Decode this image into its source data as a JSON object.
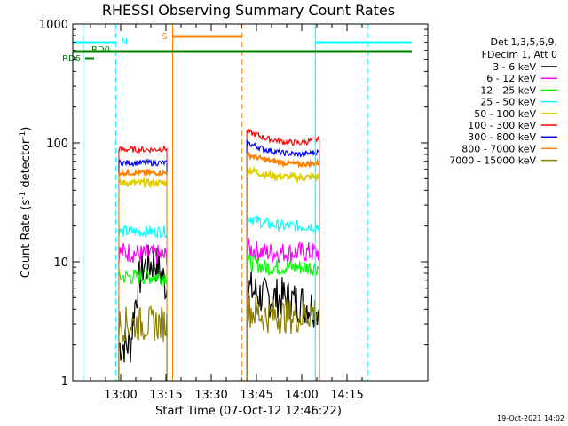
{
  "chart_data": {
    "type": "line",
    "title": "RHESSI Observing Summary Count Rates",
    "xlabel": "Start Time (07-Oct-12 12:46:22)",
    "ylabel_main": "Count Rate (s",
    "ylabel_sup1": "-1",
    "ylabel_mid": " detector",
    "ylabel_sup2": "-1",
    "ylabel_end": ")",
    "yscale": "log",
    "ylim": [
      1,
      1000
    ],
    "xlim_minutes": [
      -13.6,
      31.8
    ],
    "x_ticks": [
      {
        "value": 0,
        "label": "13:00"
      },
      {
        "value": 15,
        "label": "13:15"
      },
      {
        "value": 30,
        "label": "13:30"
      },
      {
        "value": 45,
        "label": "13:45"
      },
      {
        "value": 60,
        "label": "14:00"
      },
      {
        "value": 75,
        "label": "14:15"
      }
    ],
    "y_ticks": [
      {
        "value": 1,
        "label": "1"
      },
      {
        "value": 10,
        "label": "10"
      },
      {
        "value": 100,
        "label": "100"
      },
      {
        "value": 1000,
        "label": "1000"
      }
    ],
    "legend_header": [
      "Det 1,3,5,6,9,",
      "FDecim 1, Att 0"
    ],
    "legend_position": "right",
    "timestamp": "19-Oct-2021 14:02",
    "series": [
      {
        "name": "3 - 6 keV",
        "color": "#000000",
        "seg1": [
          2,
          2,
          9,
          10,
          6
        ],
        "seg2": [
          6,
          5,
          5,
          4.5,
          4
        ]
      },
      {
        "name": "6 - 12 keV",
        "color": "#ff00ff",
        "seg1": [
          12,
          12,
          11.5,
          11.5,
          11
        ],
        "seg2": [
          13,
          12,
          12,
          12,
          12
        ]
      },
      {
        "name": "12 - 25 keV",
        "color": "#00ff00",
        "seg1": [
          7.5,
          7.5,
          7.5,
          7.5,
          7.5
        ],
        "seg2": [
          10,
          9,
          9,
          9,
          9
        ]
      },
      {
        "name": "25 - 50 keV",
        "color": "#00ffff",
        "seg1": [
          18,
          18,
          18,
          18,
          18
        ],
        "seg2": [
          24,
          21,
          20,
          20,
          20
        ]
      },
      {
        "name": "50 - 100 keV",
        "color": "#e0d000",
        "seg1": [
          46,
          46,
          46,
          46,
          46
        ],
        "seg2": [
          60,
          54,
          52,
          51,
          52
        ]
      },
      {
        "name": "100 - 300 keV",
        "color": "#ff0000",
        "seg1": [
          88,
          88,
          88,
          88,
          90
        ],
        "seg2": [
          125,
          110,
          102,
          100,
          108
        ]
      },
      {
        "name": "300 - 800 keV",
        "color": "#0000ff",
        "seg1": [
          68,
          68,
          68,
          68,
          68
        ],
        "seg2": [
          100,
          88,
          82,
          80,
          84
        ]
      },
      {
        "name": "800 - 7000 keV",
        "color": "#ff8000",
        "seg1": [
          56,
          56,
          56,
          56,
          56
        ],
        "seg2": [
          80,
          72,
          68,
          66,
          68
        ]
      },
      {
        "name": "7000 - 15000 keV",
        "color": "#8b8000",
        "seg1": [
          3,
          3,
          3,
          3,
          3
        ],
        "seg2": [
          4,
          3.5,
          3.5,
          3.5,
          4
        ]
      }
    ],
    "segment_times": {
      "seg1": [
        -0.6,
        15.3
      ],
      "seg2": [
        41.8,
        65.8
      ]
    },
    "flags": [
      {
        "label": "N",
        "color": "#00ffff"
      },
      {
        "label": "S",
        "color": "#ff8000"
      },
      {
        "label": "RD0",
        "color": "#008000"
      },
      {
        "label": "RD6",
        "color": "#008000"
      }
    ]
  }
}
